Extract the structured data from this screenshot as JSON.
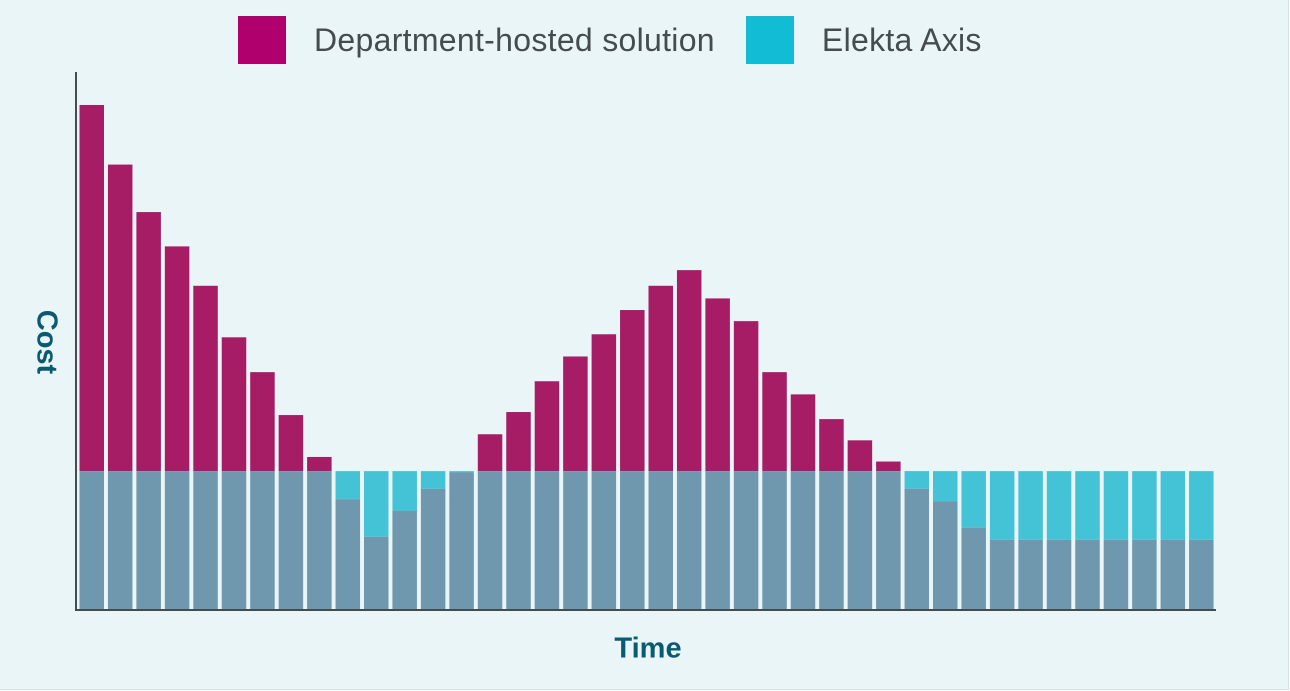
{
  "chart_data": {
    "type": "bar",
    "stacked_overlay": true,
    "xlabel": "Time",
    "ylabel": "Cost",
    "legend_position": "top",
    "grid": false,
    "ylim": [
      0,
      100
    ],
    "colors": {
      "department": "#a61d65",
      "elekta": "#44c3d6",
      "overlap": "#6f97ad",
      "axis": "#444c4f",
      "label": "#0a5a72"
    },
    "series": [
      {
        "name": "Department-hosted solution",
        "color": "#b0006e",
        "values": [
          100,
          88.2,
          78.8,
          72,
          64.2,
          54,
          47.1,
          38.6,
          30.3,
          21.9,
          14.5,
          19.6,
          24,
          27.3,
          34.8,
          39.2,
          45.3,
          50.2,
          54.6,
          59.4,
          64.2,
          67.3,
          61.7,
          57.2,
          47.1,
          42.7,
          37.8,
          33.6,
          29.4,
          24,
          21.5,
          16.3,
          13.9,
          13.9,
          13.9,
          13.9,
          13.9,
          13.9,
          13.9,
          13.9
        ]
      },
      {
        "name": "Elekta Axis",
        "color": "#12bcd4",
        "values": [
          27.5,
          27.5,
          27.5,
          27.5,
          27.5,
          27.5,
          27.5,
          27.5,
          27.5,
          27.5,
          27.5,
          27.5,
          27.5,
          27.5,
          27.5,
          27.5,
          27.5,
          27.5,
          27.5,
          27.5,
          27.5,
          27.5,
          27.5,
          27.5,
          27.5,
          27.5,
          27.5,
          27.5,
          27.5,
          27.5,
          27.5,
          27.5,
          27.5,
          27.5,
          27.5,
          27.5,
          27.5,
          27.5,
          27.5,
          27.5
        ]
      }
    ]
  }
}
